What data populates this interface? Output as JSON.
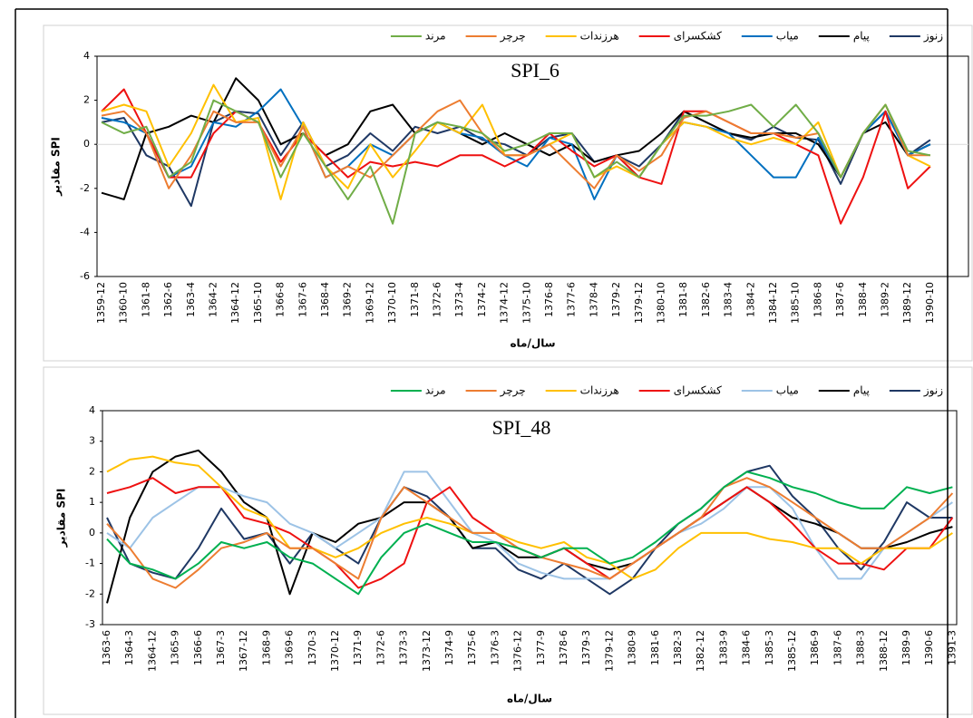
{
  "chart_data": [
    {
      "type": "line",
      "title": "SPI_6",
      "y_label": "مقادیر SPI",
      "x_label": "سال/ماه",
      "categories": [
        "1359-12",
        "1360-10",
        "1361-8",
        "1362-6",
        "1363-4",
        "1364-2",
        "1364-12",
        "1365-10",
        "1366-8",
        "1367-6",
        "1368-4",
        "1369-2",
        "1369-12",
        "1370-10",
        "1371-8",
        "1372-6",
        "1373-4",
        "1374-2",
        "1374-12",
        "1375-10",
        "1376-8",
        "1377-6",
        "1378-4",
        "1379-2",
        "1379-12",
        "1380-10",
        "1381-8",
        "1382-6",
        "1383-4",
        "1384-2",
        "1384-12",
        "1385-10",
        "1386-8",
        "1387-6",
        "1388-4",
        "1389-2",
        "1389-12",
        "1390-10"
      ],
      "ylim": [
        -6,
        4
      ],
      "yticks": [
        -6,
        -4,
        -2,
        0,
        2,
        4
      ],
      "grid": false,
      "zero_line": true,
      "series": [
        {
          "name": "زنوز",
          "color": "#1f3864",
          "values": [
            1.0,
            1.2,
            -0.5,
            -1.0,
            -2.8,
            1.0,
            1.5,
            1.4,
            -0.5,
            1.0,
            -1.0,
            -0.5,
            0.5,
            -0.3,
            0.8,
            0.5,
            0.8,
            0.2,
            0.0,
            -0.5,
            0.3,
            0.5,
            -0.8,
            -0.5,
            -1.0,
            0.0,
            1.5,
            1.0,
            0.5,
            0.2,
            0.8,
            0.3,
            0.2,
            -1.8,
            0.5,
            1.5,
            -0.5,
            0.2
          ]
        },
        {
          "name": "پیام",
          "color": "#000000",
          "values": [
            -2.2,
            -2.5,
            0.5,
            0.8,
            1.3,
            1.0,
            3.0,
            2.0,
            0.0,
            0.5,
            -0.5,
            0.0,
            1.5,
            1.8,
            0.5,
            1.0,
            0.5,
            0.0,
            0.5,
            0.0,
            -0.5,
            0.0,
            -0.8,
            -0.5,
            -0.3,
            0.5,
            1.5,
            1.0,
            0.5,
            0.3,
            0.5,
            0.5,
            0.0,
            -1.5,
            0.5,
            1.0,
            -0.5,
            0.0
          ]
        },
        {
          "name": "میاب",
          "color": "#0070c0",
          "values": [
            1.2,
            1.0,
            0.5,
            -1.5,
            -1.0,
            1.0,
            0.8,
            1.5,
            2.5,
            0.8,
            -1.5,
            -1.0,
            0.0,
            -0.5,
            0.5,
            1.0,
            0.5,
            0.3,
            -0.5,
            -1.0,
            0.3,
            0.0,
            -2.5,
            -0.5,
            -1.5,
            0.0,
            1.0,
            0.8,
            0.5,
            -0.5,
            -1.5,
            -1.5,
            0.3,
            -1.5,
            0.5,
            1.5,
            -0.5,
            0.0
          ]
        },
        {
          "name": "کشکسرای",
          "color": "#ee1111",
          "values": [
            1.5,
            2.5,
            0.5,
            -1.5,
            -1.5,
            0.5,
            1.5,
            1.0,
            -0.8,
            0.5,
            -0.5,
            -1.5,
            -0.8,
            -1.0,
            -0.8,
            -1.0,
            -0.5,
            -0.5,
            -1.0,
            -0.5,
            0.5,
            -0.3,
            -1.0,
            -0.5,
            -1.5,
            -1.8,
            1.5,
            1.5,
            1.0,
            0.5,
            0.5,
            0.0,
            -0.5,
            -3.6,
            -1.5,
            1.5,
            -2.0,
            -1.0
          ]
        },
        {
          "name": "هرزندات",
          "color": "#ffc000",
          "values": [
            1.5,
            1.8,
            1.5,
            -1.0,
            0.5,
            2.7,
            1.0,
            1.2,
            -2.5,
            1.0,
            -1.0,
            -2.0,
            0.0,
            -1.5,
            -0.3,
            1.0,
            0.5,
            1.8,
            -0.5,
            -0.5,
            0.0,
            0.5,
            -1.5,
            -1.0,
            -1.5,
            0.0,
            1.0,
            0.8,
            0.3,
            0.0,
            0.3,
            0.0,
            1.0,
            -1.5,
            0.5,
            1.8,
            -0.5,
            -1.0
          ]
        },
        {
          "name": "چرچر",
          "color": "#ed7d31",
          "values": [
            1.3,
            1.5,
            0.5,
            -2.0,
            -0.5,
            1.5,
            1.0,
            1.0,
            -1.0,
            0.8,
            -1.5,
            -1.0,
            -1.5,
            -0.5,
            0.5,
            1.5,
            2.0,
            0.5,
            -0.5,
            -0.5,
            0.0,
            -1.0,
            -2.0,
            -0.5,
            -1.2,
            -0.5,
            1.2,
            1.5,
            1.0,
            0.5,
            0.5,
            0.3,
            0.5,
            -1.5,
            0.5,
            1.8,
            -0.5,
            -0.5
          ]
        },
        {
          "name": "مرند",
          "color": "#70ad47",
          "values": [
            1.0,
            0.5,
            0.8,
            -1.5,
            -0.8,
            2.0,
            1.5,
            1.0,
            -1.5,
            0.5,
            -1.0,
            -2.5,
            -1.0,
            -3.6,
            0.5,
            1.0,
            0.8,
            0.5,
            -0.3,
            0.0,
            0.5,
            0.5,
            -1.5,
            -0.8,
            -1.5,
            0.0,
            1.3,
            1.3,
            1.5,
            1.8,
            0.8,
            1.8,
            0.5,
            -1.5,
            0.5,
            1.8,
            -0.3,
            -0.5
          ]
        }
      ]
    },
    {
      "type": "line",
      "title": "SPI_48",
      "y_label": "مقادیر SPI",
      "x_label": "سال/ماه",
      "categories": [
        "1363-6",
        "1364-3",
        "1364-12",
        "1365-9",
        "1366-6",
        "1367-3",
        "1367-12",
        "1368-9",
        "1369-6",
        "1370-3",
        "1370-12",
        "1371-9",
        "1372-6",
        "1373-3",
        "1373-12",
        "1374-9",
        "1375-6",
        "1376-3",
        "1376-12",
        "1377-9",
        "1378-6",
        "1379-3",
        "1379-12",
        "1380-9",
        "1381-6",
        "1382-3",
        "1382-12",
        "1383-9",
        "1384-6",
        "1385-3",
        "1385-12",
        "1386-9",
        "1387-6",
        "1388-3",
        "1388-12",
        "1389-9",
        "1390-6",
        "1391-3"
      ],
      "ylim": [
        -3,
        4
      ],
      "yticks": [
        -3,
        -2,
        -1,
        0,
        1,
        2,
        3,
        4
      ],
      "grid": false,
      "zero_line": false,
      "series": [
        {
          "name": "زنوز",
          "color": "#1f3864",
          "values": [
            0.5,
            -1.0,
            -1.3,
            -1.5,
            -0.5,
            0.8,
            -0.2,
            0.0,
            -1.0,
            0.0,
            -0.5,
            -1.0,
            0.5,
            1.5,
            1.2,
            0.5,
            -0.5,
            -0.5,
            -1.2,
            -1.5,
            -1.0,
            -1.5,
            -2.0,
            -1.5,
            -0.5,
            0.3,
            0.8,
            1.5,
            2.0,
            2.2,
            1.2,
            0.5,
            -0.5,
            -1.2,
            -0.3,
            1.0,
            0.5,
            0.5
          ]
        },
        {
          "name": "پیام",
          "color": "#000000",
          "values": [
            -2.3,
            0.5,
            2.0,
            2.5,
            2.7,
            2.0,
            1.0,
            0.5,
            -2.0,
            0.0,
            -0.3,
            0.3,
            0.5,
            1.0,
            1.0,
            0.5,
            -0.5,
            -0.3,
            -0.8,
            -0.8,
            -0.5,
            -1.0,
            -1.2,
            -1.0,
            -0.5,
            0.0,
            0.5,
            1.0,
            1.5,
            1.0,
            0.5,
            0.3,
            0.0,
            -0.5,
            -0.5,
            -0.3,
            0.0,
            0.2
          ]
        },
        {
          "name": "میاب",
          "color": "#9dc3e6",
          "values": [
            0.0,
            -0.5,
            0.5,
            1.0,
            1.5,
            1.5,
            1.2,
            1.0,
            0.3,
            0.0,
            -0.5,
            0.0,
            0.5,
            2.0,
            2.0,
            1.0,
            0.0,
            -0.3,
            -1.0,
            -1.3,
            -1.5,
            -1.5,
            -1.5,
            -1.0,
            -0.5,
            0.0,
            0.3,
            0.8,
            1.5,
            1.5,
            0.8,
            -0.5,
            -1.5,
            -1.5,
            -0.5,
            0.0,
            0.5,
            1.0
          ]
        },
        {
          "name": "کشکسرای",
          "color": "#ee1111",
          "values": [
            1.3,
            1.5,
            1.8,
            1.3,
            1.5,
            1.5,
            0.5,
            0.3,
            0.0,
            -0.5,
            -1.0,
            -1.8,
            -1.5,
            -1.0,
            1.0,
            1.5,
            0.5,
            0.0,
            -0.5,
            -0.8,
            -0.5,
            -1.0,
            -1.5,
            -1.0,
            -0.5,
            0.0,
            0.5,
            1.0,
            1.5,
            1.0,
            0.3,
            -0.5,
            -1.0,
            -1.0,
            -1.2,
            -0.5,
            -0.5,
            0.5
          ]
        },
        {
          "name": "هرزندات",
          "color": "#ffc000",
          "values": [
            2.0,
            2.4,
            2.5,
            2.3,
            2.2,
            1.5,
            0.8,
            0.5,
            -0.5,
            -0.5,
            -0.8,
            -0.5,
            0.0,
            0.3,
            0.5,
            0.3,
            0.0,
            0.0,
            -0.3,
            -0.5,
            -0.3,
            -0.8,
            -1.0,
            -1.5,
            -1.2,
            -0.5,
            0.0,
            0.0,
            0.0,
            -0.2,
            -0.3,
            -0.5,
            -0.5,
            -1.0,
            -0.5,
            -0.5,
            -0.5,
            0.0
          ]
        },
        {
          "name": "چرچر",
          "color": "#ed7d31",
          "values": [
            0.3,
            -0.5,
            -1.5,
            -1.8,
            -1.2,
            -0.5,
            -0.3,
            0.0,
            -0.5,
            -0.5,
            -1.0,
            -1.5,
            0.5,
            1.5,
            1.0,
            0.5,
            0.0,
            0.0,
            -0.5,
            -0.8,
            -1.0,
            -1.2,
            -1.5,
            -1.0,
            -0.5,
            0.0,
            0.5,
            1.5,
            1.8,
            1.5,
            1.0,
            0.5,
            0.0,
            -0.5,
            -0.5,
            0.0,
            0.5,
            1.3
          ]
        },
        {
          "name": "مرند",
          "color": "#00b050",
          "values": [
            -0.2,
            -1.0,
            -1.2,
            -1.5,
            -1.0,
            -0.3,
            -0.5,
            -0.3,
            -0.8,
            -1.0,
            -1.5,
            -2.0,
            -0.8,
            0.0,
            0.3,
            0.0,
            -0.3,
            -0.3,
            -0.5,
            -0.8,
            -0.5,
            -0.5,
            -1.0,
            -0.8,
            -0.3,
            0.3,
            0.8,
            1.5,
            2.0,
            1.8,
            1.5,
            1.3,
            1.0,
            0.8,
            0.8,
            1.5,
            1.3,
            1.5
          ]
        }
      ]
    }
  ]
}
